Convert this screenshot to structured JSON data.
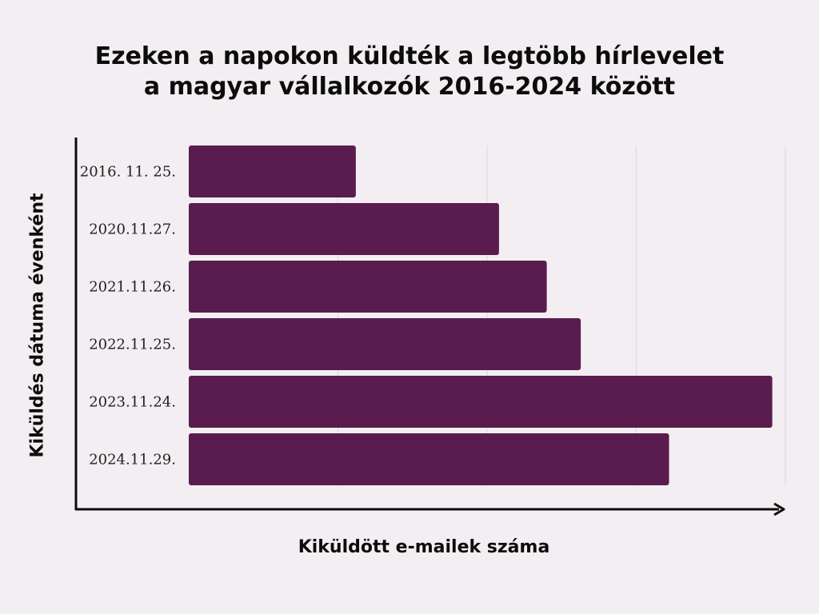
{
  "title": {
    "line1": "Ezeken a napokon küldték a legtöbb hírlevelet",
    "line2": "a magyar vállalkozók 2016-2024 között"
  },
  "colors": {
    "bar": "#5a1c4e",
    "background": "#f2eef2",
    "grid": "#dcd6dc",
    "axis": "#0c0c0c"
  },
  "chart_data": {
    "type": "bar",
    "orientation": "horizontal",
    "xlabel": "Kiküldött e-mailek száma",
    "ylabel": "Kiküldés dátuma évenként",
    "categories": [
      "2016. 11. 25.",
      "2020.11.27.",
      "2021.11.26.",
      "2022.11.25.",
      "2023.11.24.",
      "2024.11.29."
    ],
    "values": [
      28,
      52,
      60,
      65.7,
      97.8,
      80.5
    ],
    "xlim": [
      0,
      100
    ],
    "grid": true,
    "x_tick_labels_shown": false
  }
}
